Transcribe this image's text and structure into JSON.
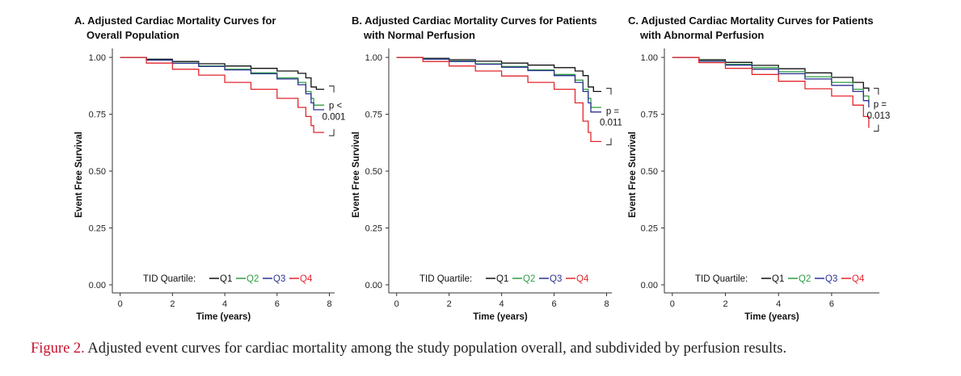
{
  "figure": {
    "label": "Figure 2.",
    "caption": " Adjusted event curves for cardiac mortality among the study population overall, and subdivided by perfusion results."
  },
  "colors": {
    "Q1": "#111111",
    "Q2": "#2e9e44",
    "Q3": "#2e3192",
    "Q4": "#e3262d"
  },
  "chart_data": [
    {
      "type": "line",
      "title_line1": "A. Adjusted Cardiac Mortality Curves for",
      "title_line2": "Overall Population",
      "xlabel": "Time (years)",
      "ylabel": "Event Free Survival",
      "xlim": [
        -0.3,
        8.2
      ],
      "ylim": [
        0,
        1
      ],
      "xticks": [
        "0",
        "2",
        "4",
        "6",
        "8"
      ],
      "yticks": [
        "0.00",
        "0.25",
        "0.50",
        "0.75",
        "1.00"
      ],
      "legend_title": "TID Quartile:",
      "legend_labels": [
        "Q1",
        "Q2",
        "Q3",
        "Q4"
      ],
      "pvalue_line1": "p <",
      "pvalue_line2": "0.001",
      "series": [
        {
          "name": "Q1",
          "points": [
            [
              0,
              1
            ],
            [
              1,
              0.992
            ],
            [
              2,
              0.982
            ],
            [
              3,
              0.972
            ],
            [
              4,
              0.962
            ],
            [
              5,
              0.952
            ],
            [
              6,
              0.94
            ],
            [
              6.8,
              0.93
            ],
            [
              7.1,
              0.91
            ],
            [
              7.3,
              0.87
            ],
            [
              7.5,
              0.86
            ],
            [
              7.8,
              0.86
            ]
          ]
        },
        {
          "name": "Q2",
          "points": [
            [
              0,
              1
            ],
            [
              1,
              0.988
            ],
            [
              2,
              0.975
            ],
            [
              3,
              0.962
            ],
            [
              4,
              0.948
            ],
            [
              5,
              0.932
            ],
            [
              6,
              0.91
            ],
            [
              6.8,
              0.89
            ],
            [
              7.1,
              0.85
            ],
            [
              7.3,
              0.82
            ],
            [
              7.4,
              0.79
            ],
            [
              7.8,
              0.79
            ]
          ]
        },
        {
          "name": "Q3",
          "points": [
            [
              0,
              1
            ],
            [
              1,
              0.988
            ],
            [
              2,
              0.974
            ],
            [
              3,
              0.96
            ],
            [
              4,
              0.945
            ],
            [
              5,
              0.928
            ],
            [
              6,
              0.905
            ],
            [
              6.8,
              0.88
            ],
            [
              7.1,
              0.84
            ],
            [
              7.3,
              0.8
            ],
            [
              7.4,
              0.77
            ],
            [
              7.8,
              0.77
            ]
          ]
        },
        {
          "name": "Q4",
          "points": [
            [
              0,
              1
            ],
            [
              1,
              0.975
            ],
            [
              2,
              0.948
            ],
            [
              3,
              0.922
            ],
            [
              4,
              0.89
            ],
            [
              5,
              0.86
            ],
            [
              6,
              0.82
            ],
            [
              6.8,
              0.78
            ],
            [
              7.1,
              0.74
            ],
            [
              7.3,
              0.7
            ],
            [
              7.4,
              0.67
            ],
            [
              7.8,
              0.67
            ]
          ]
        }
      ]
    },
    {
      "type": "line",
      "title_line1": "B. Adjusted Cardiac Mortality Curves for Patients",
      "title_line2": "with Normal Perfusion",
      "xlabel": "Time (years)",
      "ylabel": "Event Free Survival",
      "xlim": [
        -0.3,
        8.2
      ],
      "ylim": [
        0,
        1
      ],
      "xticks": [
        "0",
        "2",
        "4",
        "6",
        "8"
      ],
      "yticks": [
        "0.00",
        "0.25",
        "0.50",
        "0.75",
        "1.00"
      ],
      "legend_title": "TID Quartile:",
      "legend_labels": [
        "Q1",
        "Q2",
        "Q3",
        "Q4"
      ],
      "pvalue_line1": "p =",
      "pvalue_line2": "0.011",
      "series": [
        {
          "name": "Q1",
          "points": [
            [
              0,
              1
            ],
            [
              1,
              0.996
            ],
            [
              2,
              0.99
            ],
            [
              3,
              0.983
            ],
            [
              4,
              0.975
            ],
            [
              5,
              0.966
            ],
            [
              6,
              0.955
            ],
            [
              6.8,
              0.94
            ],
            [
              7.1,
              0.92
            ],
            [
              7.3,
              0.87
            ],
            [
              7.5,
              0.85
            ],
            [
              7.8,
              0.85
            ]
          ]
        },
        {
          "name": "Q2",
          "points": [
            [
              0,
              1
            ],
            [
              1,
              0.993
            ],
            [
              2,
              0.984
            ],
            [
              3,
              0.972
            ],
            [
              4,
              0.96
            ],
            [
              5,
              0.945
            ],
            [
              6,
              0.925
            ],
            [
              6.8,
              0.9
            ],
            [
              7.1,
              0.86
            ],
            [
              7.3,
              0.82
            ],
            [
              7.4,
              0.78
            ],
            [
              7.8,
              0.78
            ]
          ]
        },
        {
          "name": "Q3",
          "points": [
            [
              0,
              1
            ],
            [
              1,
              0.992
            ],
            [
              2,
              0.982
            ],
            [
              3,
              0.97
            ],
            [
              4,
              0.957
            ],
            [
              5,
              0.942
            ],
            [
              6,
              0.92
            ],
            [
              6.8,
              0.89
            ],
            [
              7.1,
              0.85
            ],
            [
              7.3,
              0.8
            ],
            [
              7.4,
              0.76
            ],
            [
              7.8,
              0.76
            ]
          ]
        },
        {
          "name": "Q4",
          "points": [
            [
              0,
              1
            ],
            [
              1,
              0.982
            ],
            [
              2,
              0.962
            ],
            [
              3,
              0.94
            ],
            [
              4,
              0.918
            ],
            [
              5,
              0.89
            ],
            [
              6,
              0.86
            ],
            [
              6.8,
              0.8
            ],
            [
              7.1,
              0.72
            ],
            [
              7.3,
              0.67
            ],
            [
              7.4,
              0.63
            ],
            [
              7.8,
              0.63
            ]
          ]
        }
      ]
    },
    {
      "type": "line",
      "title_line1": "C. Adjusted Cardiac Mortality Curves for Patients",
      "title_line2": "with Abnormal Perfusion",
      "xlabel": "Time (years)",
      "ylabel": "Event Free Survival",
      "xlim": [
        -0.3,
        7.8
      ],
      "ylim": [
        0,
        1
      ],
      "xticks": [
        "0",
        "2",
        "4",
        "6"
      ],
      "yticks": [
        "0.00",
        "0.25",
        "0.50",
        "0.75",
        "1.00"
      ],
      "legend_title": "TID Quartile:",
      "legend_labels": [
        "Q1",
        "Q2",
        "Q3",
        "Q4"
      ],
      "pvalue_line1": "p =",
      "pvalue_line2": "0.013",
      "series": [
        {
          "name": "Q1",
          "points": [
            [
              0,
              1
            ],
            [
              1,
              0.99
            ],
            [
              2,
              0.978
            ],
            [
              3,
              0.965
            ],
            [
              4,
              0.95
            ],
            [
              5,
              0.932
            ],
            [
              6,
              0.912
            ],
            [
              6.8,
              0.89
            ],
            [
              7.2,
              0.865
            ],
            [
              7.4,
              0.85
            ]
          ]
        },
        {
          "name": "Q2",
          "points": [
            [
              0,
              1
            ],
            [
              1,
              0.985
            ],
            [
              2,
              0.97
            ],
            [
              3,
              0.955
            ],
            [
              4,
              0.937
            ],
            [
              5,
              0.915
            ],
            [
              6,
              0.89
            ],
            [
              6.8,
              0.86
            ],
            [
              7.2,
              0.83
            ],
            [
              7.4,
              0.8
            ]
          ]
        },
        {
          "name": "Q3",
          "points": [
            [
              0,
              1
            ],
            [
              1,
              0.983
            ],
            [
              2,
              0.966
            ],
            [
              3,
              0.948
            ],
            [
              4,
              0.928
            ],
            [
              5,
              0.905
            ],
            [
              6,
              0.877
            ],
            [
              6.8,
              0.85
            ],
            [
              7.2,
              0.81
            ],
            [
              7.4,
              0.78
            ]
          ]
        },
        {
          "name": "Q4",
          "points": [
            [
              0,
              1
            ],
            [
              1,
              0.977
            ],
            [
              2,
              0.952
            ],
            [
              3,
              0.925
            ],
            [
              4,
              0.895
            ],
            [
              5,
              0.862
            ],
            [
              6,
              0.83
            ],
            [
              6.8,
              0.79
            ],
            [
              7.2,
              0.74
            ],
            [
              7.4,
              0.69
            ]
          ]
        }
      ]
    }
  ]
}
